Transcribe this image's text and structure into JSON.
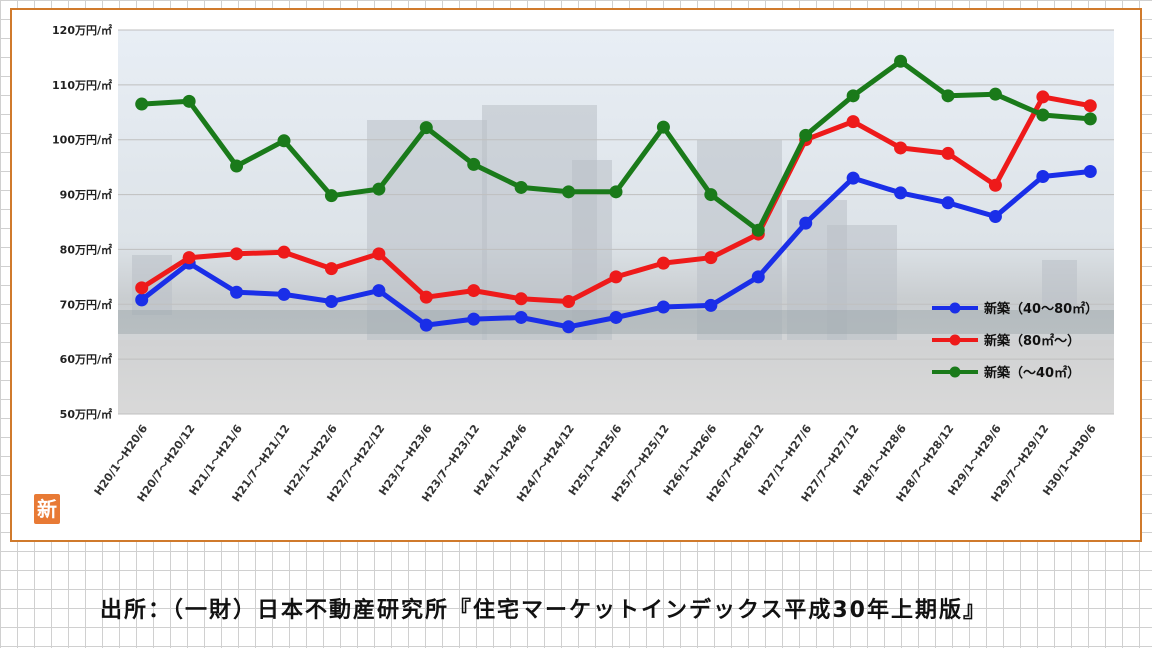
{
  "source_text": "出所：（一財）日本不動産研究所『住宅マーケットインデックス平成30年上期版』",
  "stamp_text": "新",
  "chart_data": {
    "type": "line",
    "title": "",
    "xlabel": "",
    "ylabel": "",
    "ylim": [
      50,
      120
    ],
    "yticks": [
      50,
      60,
      70,
      80,
      90,
      100,
      110,
      120
    ],
    "ytick_labels": [
      "50万円/㎡",
      "60万円/㎡",
      "70万円/㎡",
      "80万円/㎡",
      "90万円/㎡",
      "100万円/㎡",
      "110万円/㎡",
      "120万円/㎡"
    ],
    "grid": true,
    "legend_position": "right",
    "categories": [
      "H20/1～H20/6",
      "H20/7～H20/12",
      "H21/1～H21/6",
      "H21/7～H21/12",
      "H22/1～H22/6",
      "H22/7～H22/12",
      "H23/1～H23/6",
      "H23/7～H23/12",
      "H24/1～H24/6",
      "H24/7～H24/12",
      "H25/1～H25/6",
      "H25/7～H25/12",
      "H26/1～H26/6",
      "H26/7～H26/12",
      "H27/1～H27/6",
      "H27/7～H27/12",
      "H28/1～H28/6",
      "H28/7～H28/12",
      "H29/1～H29/6",
      "H29/7～H29/12",
      "H30/1～H30/6"
    ],
    "series": [
      {
        "name": "新築（40～80㎡）",
        "color": "#1a2ee8",
        "values": [
          70.8,
          77.5,
          72.2,
          71.8,
          70.5,
          72.5,
          66.2,
          67.3,
          67.6,
          65.9,
          67.6,
          69.5,
          69.8,
          75.0,
          84.8,
          93.0,
          90.3,
          88.5,
          86.0,
          93.3,
          94.2
        ]
      },
      {
        "name": "新築（80㎡～）",
        "color": "#ee1a1a",
        "values": [
          73.0,
          78.5,
          79.2,
          79.5,
          76.5,
          79.2,
          71.3,
          72.5,
          71.0,
          70.5,
          75.0,
          77.5,
          78.5,
          82.8,
          100.0,
          103.3,
          98.5,
          97.5,
          91.7,
          107.8,
          106.2
        ]
      },
      {
        "name": "新築（～40㎡）",
        "color": "#1a7a1a",
        "values": [
          106.5,
          107.0,
          95.2,
          99.8,
          89.8,
          91.0,
          102.2,
          95.5,
          91.3,
          90.5,
          90.5,
          102.3,
          90.0,
          83.5,
          100.8,
          108.0,
          114.3,
          108.0,
          108.3,
          104.5,
          103.8
        ]
      }
    ]
  }
}
